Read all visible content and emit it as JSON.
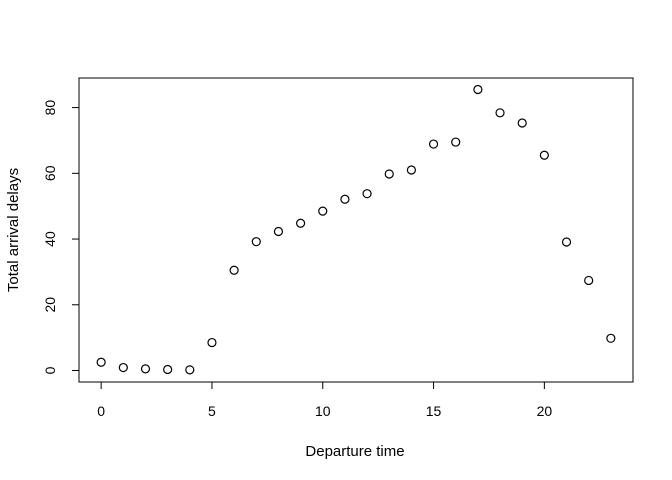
{
  "chart_data": {
    "type": "scatter",
    "title": "",
    "xlabel": "Departure time",
    "ylabel": "Total arrival delays",
    "x": [
      0,
      1,
      2,
      3,
      4,
      5,
      6,
      7,
      8,
      9,
      10,
      11,
      12,
      13,
      14,
      15,
      16,
      17,
      18,
      19,
      20,
      21,
      22,
      23
    ],
    "y": [
      2.5,
      0.9,
      0.5,
      0.3,
      0.2,
      8.5,
      30.5,
      39.2,
      42.3,
      44.8,
      48.5,
      52.1,
      53.8,
      59.8,
      61.0,
      68.9,
      69.5,
      85.5,
      78.4,
      75.3,
      65.5,
      39.1,
      27.4,
      9.8
    ],
    "xlim": [
      -1,
      24
    ],
    "ylim": [
      -3.5,
      89
    ],
    "xticks": [
      0,
      5,
      10,
      15,
      20
    ],
    "yticks": [
      0,
      20,
      40,
      60,
      80
    ],
    "xtick_labels": [
      "0",
      "5",
      "10",
      "15",
      "20"
    ],
    "ytick_labels": [
      "0",
      "20",
      "40",
      "60",
      "80"
    ],
    "grid": false,
    "legend": "none",
    "marker": "open-circle",
    "colors": {
      "points": "#000000",
      "axes": "#000000",
      "background": "#ffffff"
    }
  }
}
